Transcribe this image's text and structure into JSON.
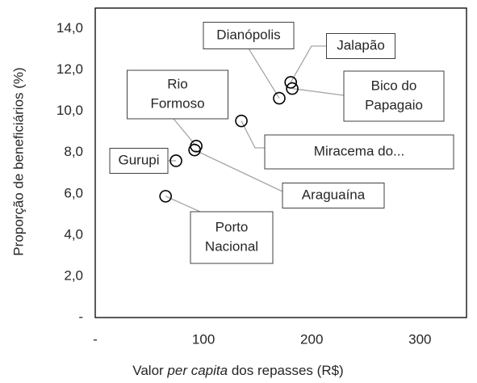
{
  "chart_data": {
    "type": "scatter",
    "xlabel_parts": [
      "Valor ",
      "per capita",
      " dos repasses (R$)"
    ],
    "ylabel": "Proporção de beneficiários (%)",
    "series": [
      {
        "color": "#000000",
        "x": [
          170,
          180.6,
          182,
          135,
          93.3,
          91.8,
          74.6,
          65
        ],
        "values": [
          10.63,
          11.4,
          11.1,
          9.53,
          8.31,
          8.12,
          7.6,
          5.88
        ],
        "labels": [
          [
            "Dianópolis"
          ],
          [
            "Jalapão"
          ],
          [
            "Bico do",
            "Papagaio"
          ],
          [
            "Miracema do..."
          ],
          [
            "Rio",
            "Formoso"
          ],
          [
            "Araguaína"
          ],
          [
            "Gurupi"
          ],
          [
            "Porto",
            "Nacional"
          ]
        ]
      }
    ],
    "xlim": [
      0,
      343
    ],
    "ylim": [
      0,
      15
    ],
    "xticks": [
      {
        "value": 0,
        "label": "-"
      },
      100,
      200,
      300
    ],
    "yticks": [
      {
        "value": 0,
        "label": "-"
      },
      {
        "value": 2,
        "label": "2,0"
      },
      {
        "value": 4,
        "label": "4,0"
      },
      {
        "value": 6,
        "label": "6,0"
      },
      {
        "value": 8,
        "label": "8,0"
      },
      {
        "value": 10,
        "label": "10,0"
      },
      {
        "value": 12,
        "label": "12,0"
      },
      {
        "value": 14,
        "label": "14,0"
      }
    ],
    "grid": false
  }
}
